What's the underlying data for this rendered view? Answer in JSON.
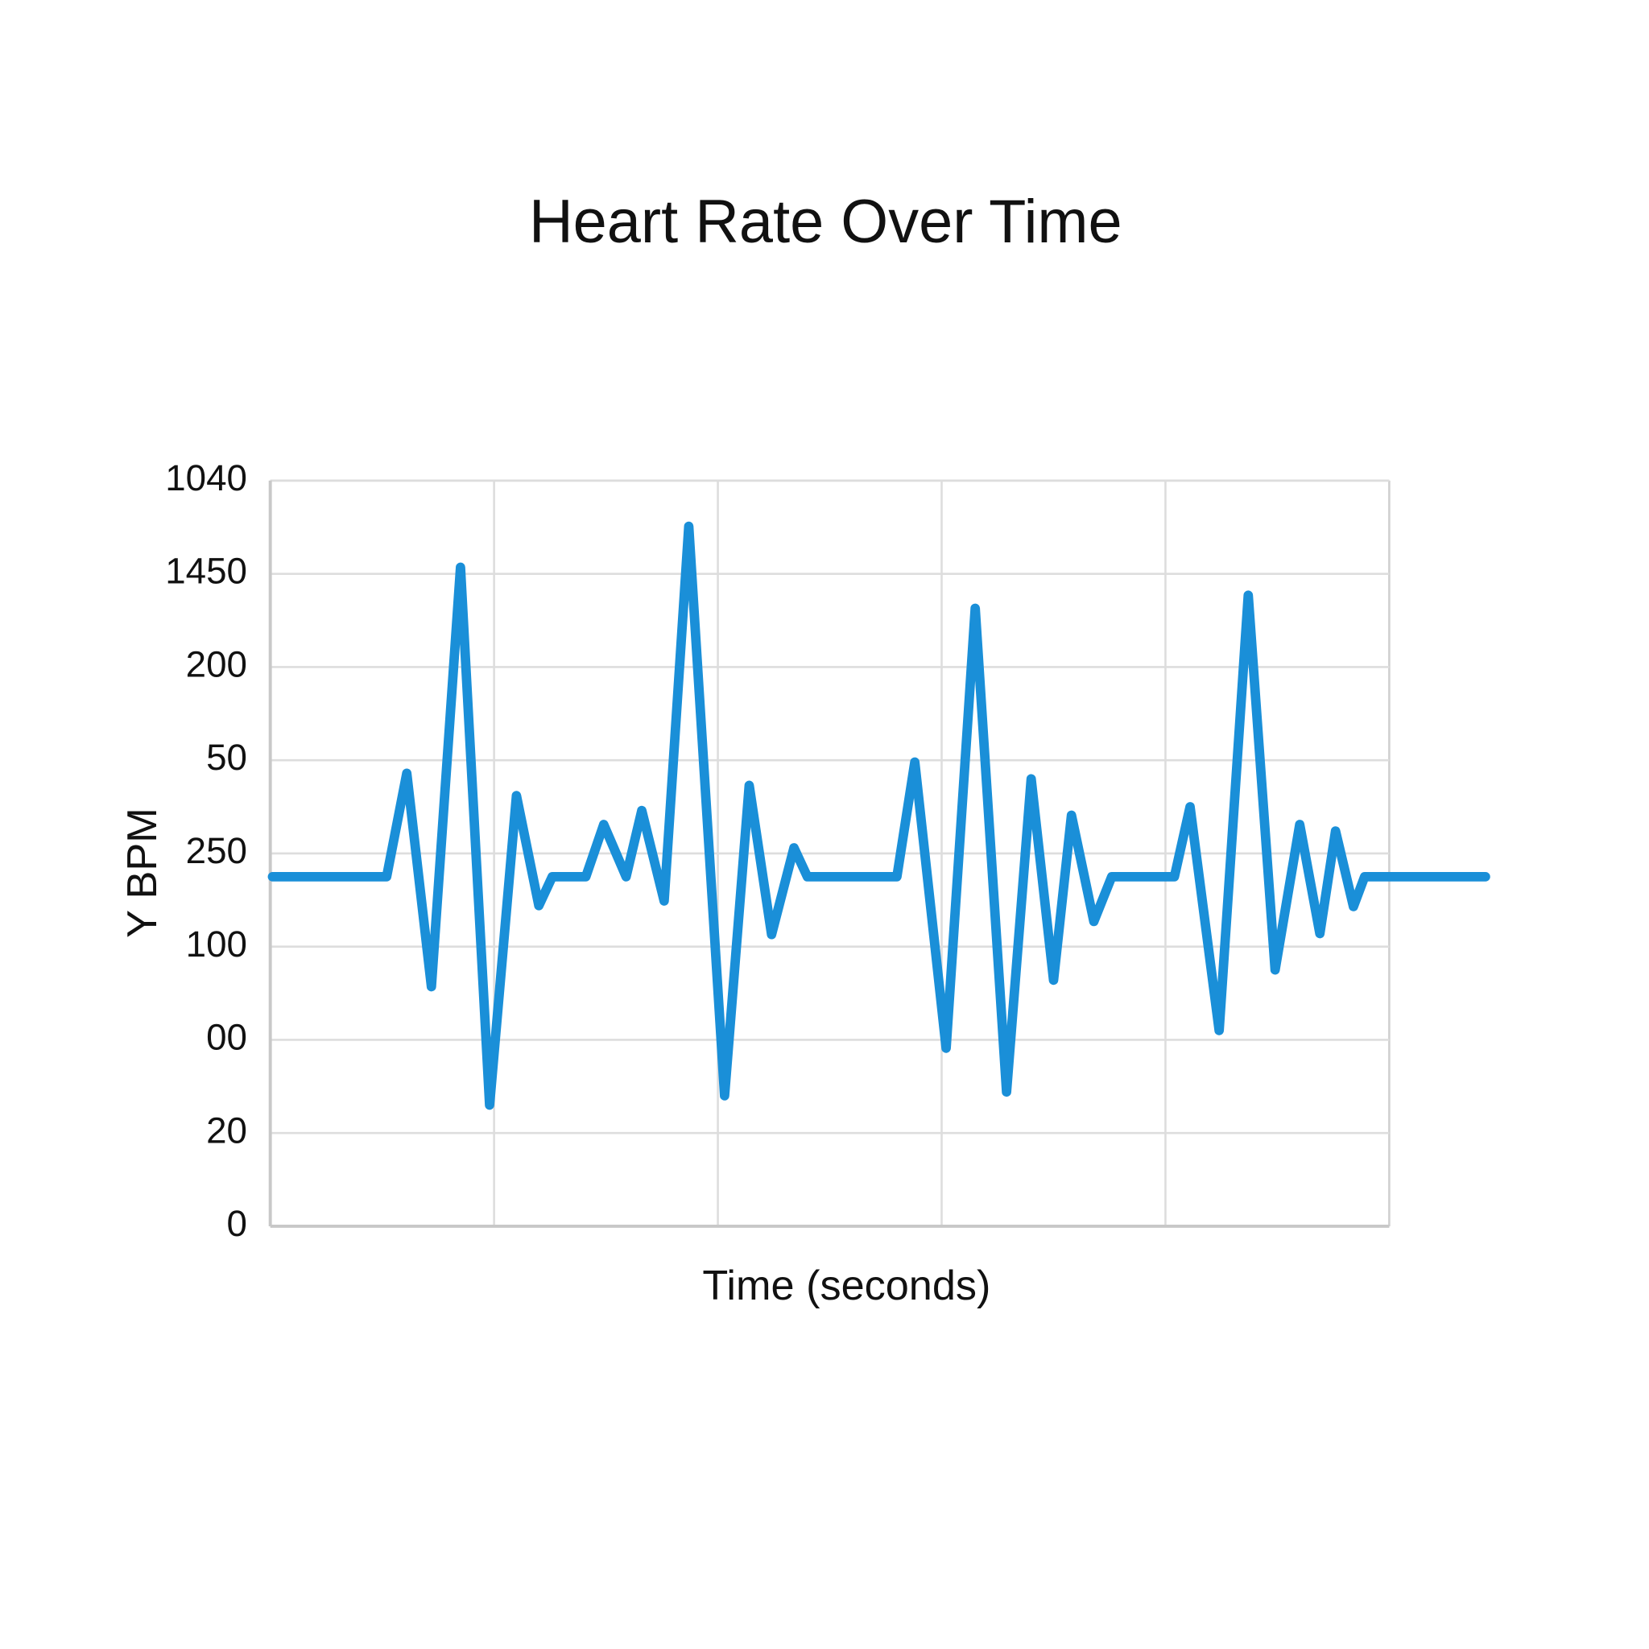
{
  "chart_data": {
    "type": "line",
    "title": "Heart Rate Over Time",
    "x_label": "Time (seconds)",
    "y_label": "Y BPM",
    "color": "#1a8fd8",
    "grid": true,
    "xlim": [
      0,
      5
    ],
    "xticks": [
      1,
      2,
      3,
      4
    ],
    "ylim": [
      0,
      8
    ],
    "yticks": [
      0,
      {
        "value": 1,
        "label": "20"
      },
      {
        "value": 2,
        "label": "00"
      },
      {
        "value": 3,
        "label": "100"
      },
      {
        "value": 4,
        "label": "250"
      },
      {
        "value": 5,
        "label": "50"
      },
      {
        "value": 6,
        "label": "200"
      },
      {
        "value": 7,
        "label": "1450"
      },
      {
        "value": 8,
        "label": "1040"
      }
    ],
    "x": [
      0.01,
      0.52,
      0.61,
      0.72,
      0.85,
      0.98,
      1.1,
      1.2,
      1.26,
      1.41,
      1.49,
      1.59,
      1.66,
      1.76,
      1.87,
      2.03,
      2.14,
      2.24,
      2.34,
      2.4,
      2.8,
      2.88,
      3.02,
      3.15,
      3.29,
      3.4,
      3.5,
      3.58,
      3.68,
      3.76,
      4.04,
      4.11,
      4.24,
      4.37,
      4.49,
      4.6,
      4.69,
      4.76,
      4.84,
      4.89,
      5.43
    ],
    "values": [
      3.75,
      3.75,
      4.86,
      2.57,
      7.07,
      1.3,
      4.62,
      3.44,
      3.75,
      3.75,
      4.31,
      3.75,
      4.46,
      3.49,
      7.51,
      1.4,
      4.73,
      3.13,
      4.06,
      3.75,
      3.75,
      4.98,
      1.91,
      6.63,
      1.44,
      4.8,
      2.64,
      4.41,
      3.27,
      3.75,
      3.75,
      4.5,
      2.1,
      6.77,
      2.75,
      4.31,
      3.14,
      4.24,
      3.43,
      3.75,
      3.75
    ]
  }
}
